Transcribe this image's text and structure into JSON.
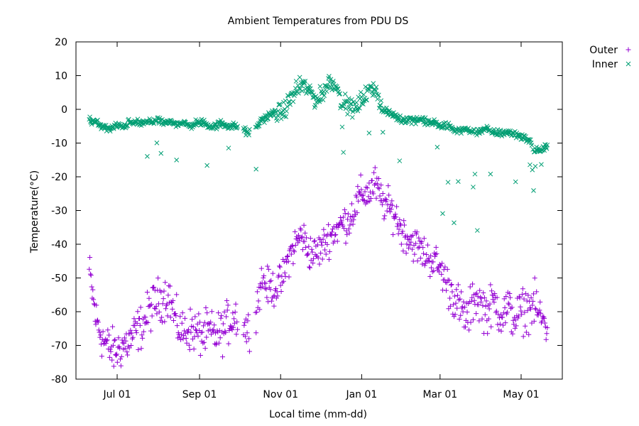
{
  "chart_data": {
    "type": "scatter",
    "title": "Ambient Temperatures from PDU    DS",
    "xlabel": "Local time (mm-dd)",
    "ylabel": "Temperature(°C)",
    "ylim": [
      -80,
      20
    ],
    "yticks": [
      20,
      10,
      0,
      -10,
      -20,
      -30,
      -40,
      -50,
      -60,
      -70,
      -80
    ],
    "xlim": [
      0,
      366
    ],
    "xticks": [
      {
        "label": "Jul 01",
        "day": 31
      },
      {
        "label": "Sep 01",
        "day": 93
      },
      {
        "label": "Nov 01",
        "day": 154
      },
      {
        "label": "Jan 01",
        "day": 215
      },
      {
        "label": "Mar 01",
        "day": 274
      },
      {
        "label": "May 01",
        "day": 335
      }
    ],
    "x_unit_note": "days since Jun 01",
    "legend_position": "top-right outside",
    "series": [
      {
        "name": "Outer",
        "marker": "+",
        "color": "#9400d3",
        "x": [
          10,
          15,
          20,
          25,
          30,
          35,
          40,
          45,
          50,
          55,
          60,
          65,
          70,
          75,
          80,
          85,
          90,
          95,
          100,
          105,
          110,
          115,
          120,
          130,
          135,
          140,
          145,
          150,
          155,
          160,
          165,
          170,
          175,
          180,
          185,
          190,
          195,
          200,
          205,
          210,
          215,
          220,
          225,
          230,
          235,
          240,
          245,
          250,
          255,
          260,
          265,
          270,
          275,
          280,
          285,
          290,
          295,
          300,
          305,
          310,
          315,
          320,
          325,
          330,
          335,
          340,
          345,
          350,
          355
        ],
        "values": [
          -48,
          -62,
          -68,
          -71,
          -72,
          -70,
          -69,
          -66,
          -64,
          -60,
          -57,
          -56,
          -55,
          -63,
          -66,
          -65,
          -66,
          -67,
          -66,
          -67,
          -66,
          -63,
          -61,
          -66,
          -60,
          -50,
          -53,
          -53,
          -51,
          -44,
          -40,
          -37,
          -42,
          -43,
          -41,
          -38,
          -36,
          -34,
          -33,
          -29,
          -25,
          -25,
          -22,
          -27,
          -29,
          -31,
          -36,
          -38,
          -40,
          -42,
          -44,
          -45,
          -48,
          -52,
          -56,
          -60,
          -62,
          -55,
          -58,
          -60,
          -57,
          -61,
          -59,
          -62,
          -60,
          -59,
          -58,
          -62,
          -64
        ]
      },
      {
        "name": "Inner",
        "marker": "x",
        "color": "#009e73",
        "x": [
          10,
          15,
          20,
          25,
          30,
          35,
          40,
          45,
          50,
          55,
          60,
          65,
          70,
          75,
          80,
          85,
          90,
          95,
          100,
          105,
          110,
          115,
          120,
          130,
          135,
          140,
          145,
          150,
          155,
          160,
          165,
          170,
          175,
          180,
          185,
          190,
          195,
          200,
          205,
          210,
          215,
          220,
          225,
          230,
          235,
          240,
          245,
          250,
          255,
          260,
          265,
          270,
          275,
          280,
          285,
          290,
          295,
          300,
          305,
          310,
          315,
          320,
          325,
          330,
          335,
          340,
          345,
          350,
          355
        ],
        "values": [
          -3,
          -4,
          -5,
          -6,
          -5,
          -5,
          -4,
          -4,
          -4,
          -4,
          -3,
          -4,
          -4,
          -4,
          -4,
          -5,
          -4,
          -4,
          -5,
          -5,
          -4,
          -5,
          -5,
          -7,
          -6,
          -3,
          -2,
          -1,
          -1,
          2,
          5,
          7,
          6,
          3,
          4,
          8,
          8,
          2,
          1,
          0,
          3,
          5,
          7,
          0,
          -1,
          -2,
          -3,
          -3,
          -3,
          -3,
          -4,
          -4,
          -5,
          -5,
          -6,
          -6,
          -6,
          -7,
          -6,
          -6,
          -7,
          -7,
          -7,
          -7,
          -8,
          -9,
          -12,
          -12,
          -11
        ]
      }
    ],
    "outlier_notes": "Inner series has dips to about -25 to -35 around Mar–Apr; Outer ranges roughly -77 to -12"
  }
}
